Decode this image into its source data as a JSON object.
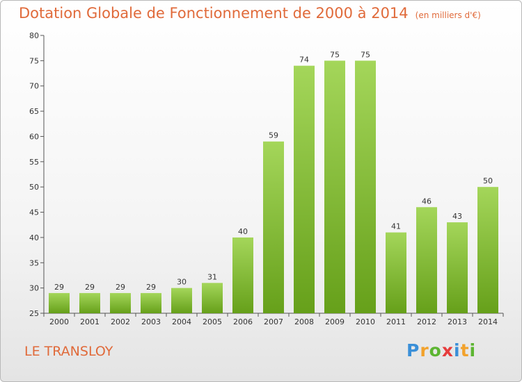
{
  "title": "Dotation Globale de Fonctionnement de 2000 à 2014",
  "unit_note": "(en milliers d'€)",
  "commune": "LE TRANSLOY",
  "logo": {
    "letters": [
      "P",
      "r",
      "o",
      "x",
      "i",
      "t",
      "i"
    ],
    "colors": [
      "#3a8fd8",
      "#f2a22c",
      "#5cb531",
      "#e63c3c",
      "#3a8fd8",
      "#f2a22c",
      "#5cb531"
    ]
  },
  "chart_data": {
    "type": "bar",
    "title": "Dotation Globale de Fonctionnement de 2000 à 2014",
    "subtitle": "(en milliers d'€)",
    "xlabel": "",
    "ylabel": "",
    "categories": [
      "2000",
      "2001",
      "2002",
      "2003",
      "2004",
      "2005",
      "2006",
      "2007",
      "2008",
      "2009",
      "2010",
      "2011",
      "2012",
      "2013",
      "2014"
    ],
    "values": [
      29,
      29,
      29,
      29,
      30,
      31,
      40,
      59,
      74,
      75,
      75,
      41,
      46,
      43,
      50
    ],
    "ylim": [
      25,
      80
    ],
    "yticks": [
      25,
      30,
      35,
      40,
      45,
      50,
      55,
      60,
      65,
      70,
      75,
      80
    ],
    "grid": false,
    "legend": "none",
    "bar_color_top": "#a4d65a",
    "bar_color_bottom": "#66a01a"
  }
}
